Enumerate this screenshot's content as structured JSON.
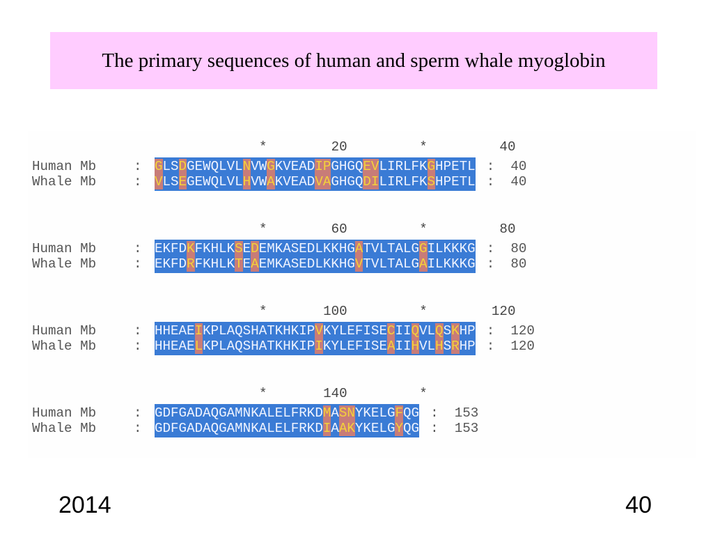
{
  "title": "The primary sequences of human and sperm whale myoglobin",
  "footer": {
    "left": "2014",
    "right": "40"
  },
  "blocks": [
    {
      "ruler": "*        20         *         40",
      "rows": [
        {
          "label": "Human Mb",
          "sep": ":",
          "seq": "GLSDGEWQLVLNVWGKVEADIPGHGQEVLIRLFKGHPETL",
          "end": "40"
        },
        {
          "label": "Whale Mb",
          "sep": ":",
          "seq": "VLSEGEWQLVLHVWAKVEADVAGHGQDILIRLFKSHPETL",
          "end": "40"
        }
      ]
    },
    {
      "ruler": "*        60         *         80",
      "rows": [
        {
          "label": "Human Mb",
          "sep": ":",
          "seq": "EKFDKFKHLKSEDEMKASEDLKKHGATVLTALGGILKKKG",
          "end": "80"
        },
        {
          "label": "Whale Mb",
          "sep": ":",
          "seq": "EKFDRFKHLKTEAEMKASEDLKKHGVTVLTALGAILKKKG",
          "end": "80"
        }
      ]
    },
    {
      "ruler": "*       100         *        120",
      "rows": [
        {
          "label": "Human Mb",
          "sep": ":",
          "seq": "HHEAEIKPLAQSHATKHKIPVKYLEFISECIIQVLQSKHP",
          "end": "120"
        },
        {
          "label": "Whale Mb",
          "sep": ":",
          "seq": "HHEAELKPLAQSHATKHKIPIKYLEFISEAIIHVLHSRHP",
          "end": "120"
        }
      ]
    },
    {
      "ruler": "*       140         *",
      "rows": [
        {
          "label": "Human Mb",
          "sep": ":",
          "seq": "GDFGADAQGAMNKALELFRKDMASNYKELGFQG",
          "end": "153"
        },
        {
          "label": "Whale Mb",
          "sep": ":",
          "seq": "GDFGADAQGAMNKALELFRKDIAAKYKELGYQG",
          "end": "153"
        }
      ]
    }
  ]
}
